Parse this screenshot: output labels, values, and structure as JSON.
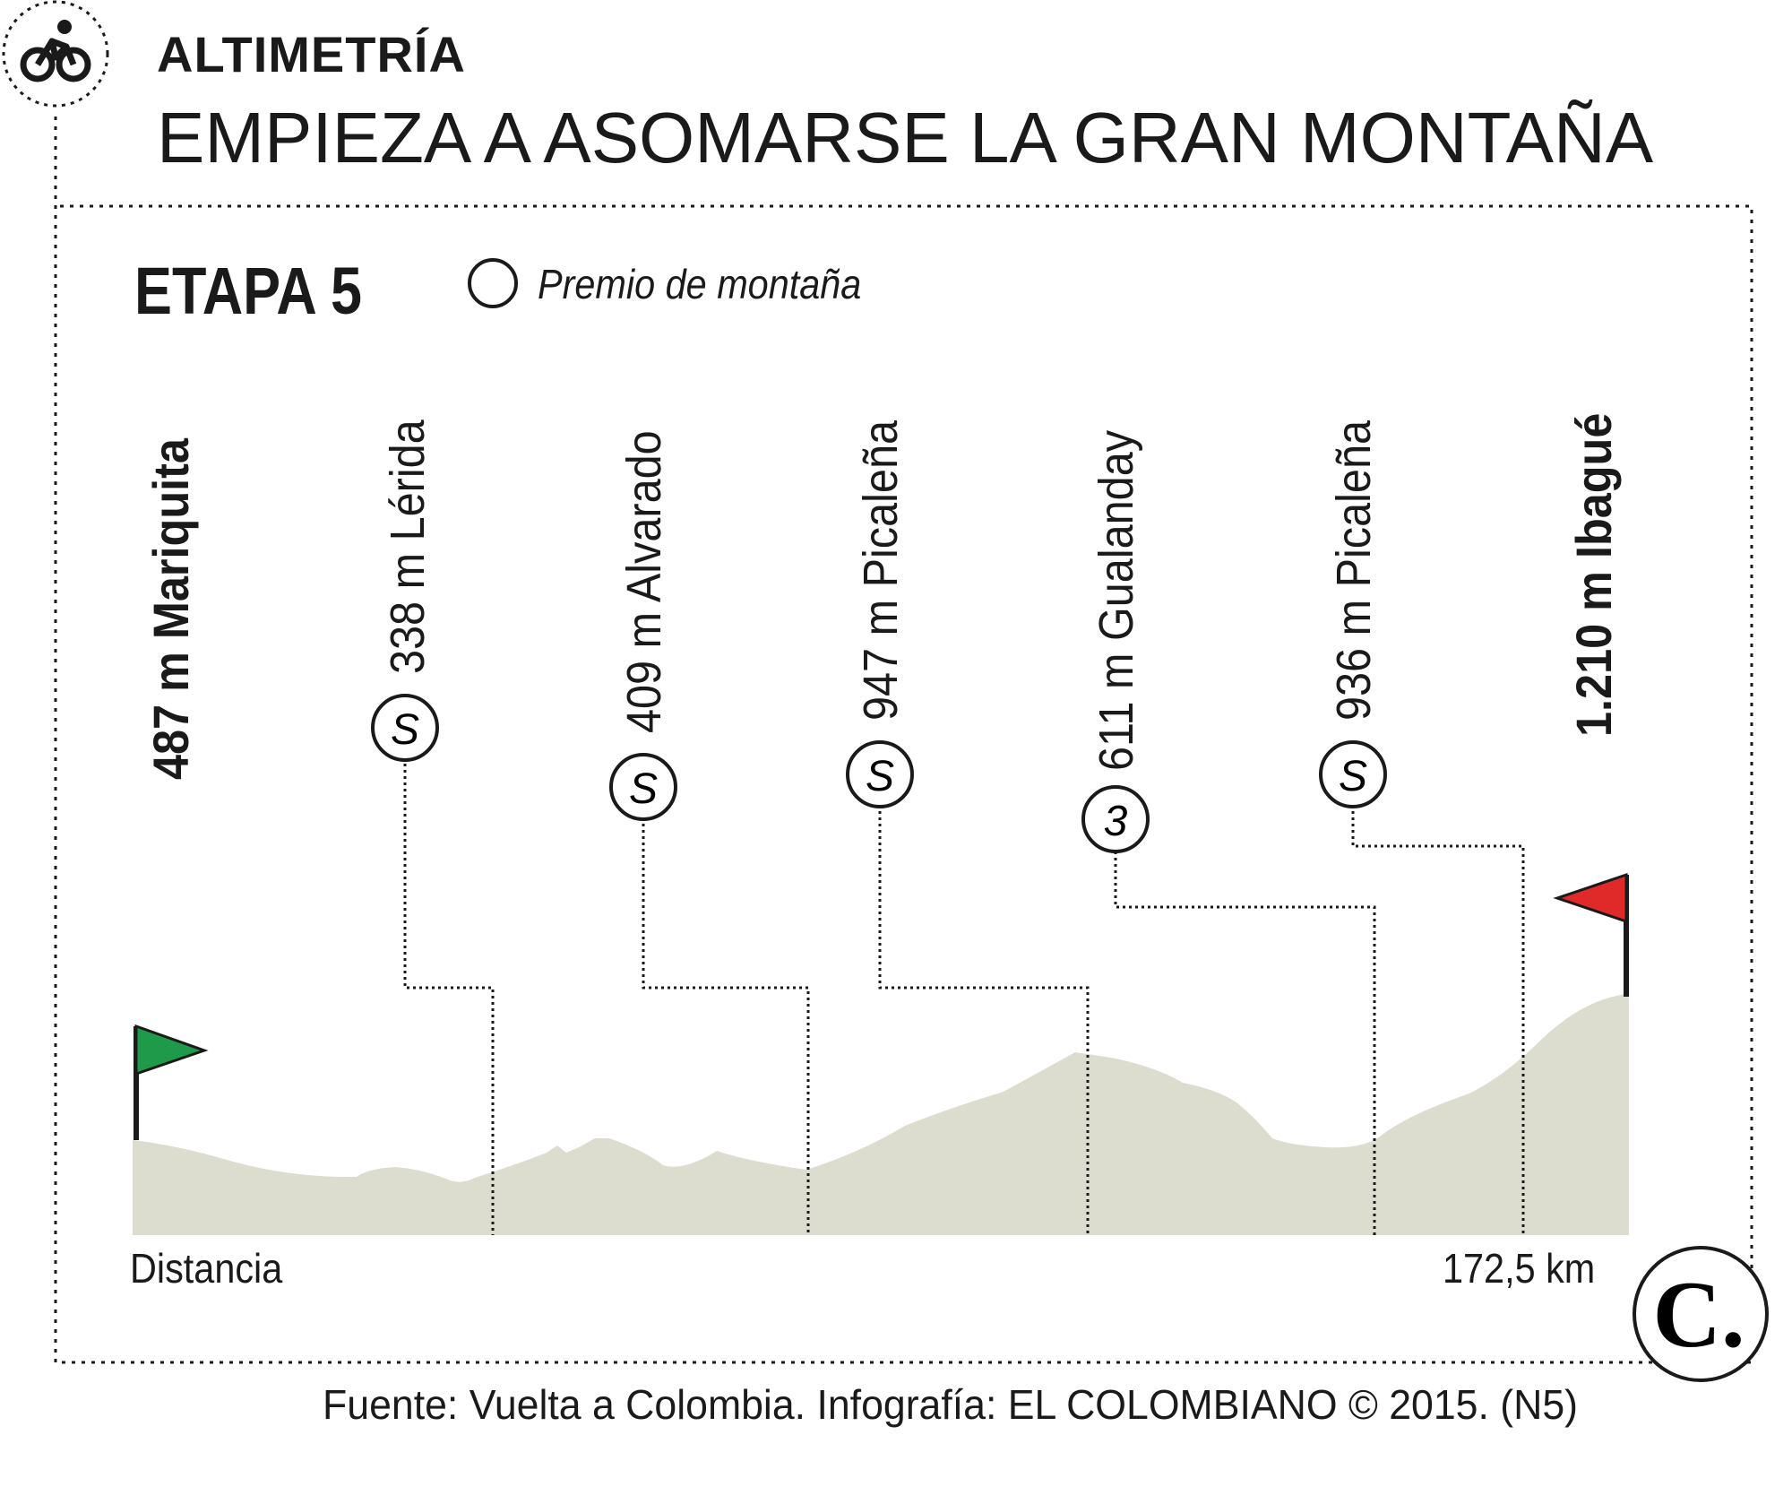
{
  "header": {
    "section": "ALTIMETRÍA",
    "headline": "EMPIEZA  A ASOMARSE LA GRAN MONTAÑA"
  },
  "stage": {
    "title": "ETAPA 5",
    "legend_label": "Premio de montaña"
  },
  "start": {
    "label": "487 m Mariquita",
    "flag_color": "#1f9a4a"
  },
  "finish": {
    "label": "1.210 m Ibagué",
    "flag_color": "#e02a2a"
  },
  "climbs": [
    {
      "label": "338 m Lérida",
      "badge": "S"
    },
    {
      "label": "409 m Alvarado",
      "badge": "S"
    },
    {
      "label": "947 m Picaleña",
      "badge": "S"
    },
    {
      "label": "611 m Gualanday",
      "badge": "3"
    },
    {
      "label": "936 m Picaleña",
      "badge": "S"
    }
  ],
  "axis": {
    "start_label": "Distancia",
    "end_label": "172,5 km"
  },
  "profile_color": "#ddddcf",
  "logo": {
    "letter": "C."
  },
  "footer": {
    "source": "Fuente: Vuelta a Colombia. Infografía: EL COLOMBIANO © 2015. (N5)"
  }
}
